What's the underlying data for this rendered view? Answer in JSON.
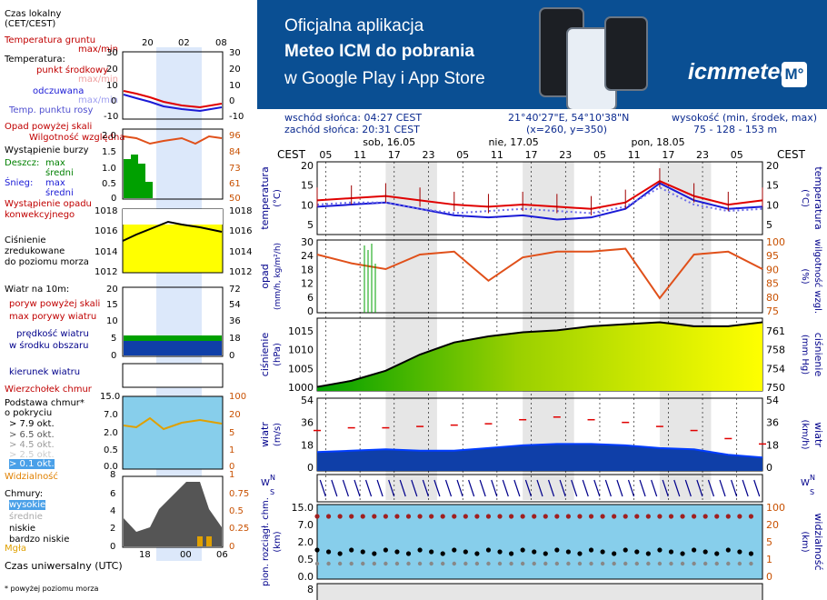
{
  "banner": {
    "line1": "Oficjalna aplikacja",
    "line2": "Meteo ICM do pobrania",
    "line3": "w Google Play i App Store",
    "logo": "icmmeteo",
    "logo_badge": "M°",
    "bg_color": "#0a4f93"
  },
  "info": {
    "sunrise": "wschód słońca: 04:27 CEST",
    "sunset": "zachód słońca: 20:31 CEST",
    "coords": "21°40'27\"E, 54°10'38\"N",
    "grid": "(x=260, y=350)",
    "elevation_label": "wysokość (min, środek, max)",
    "elevation_values": "75 - 128 - 153 m"
  },
  "legend": {
    "time_local": "Czas lokalny",
    "time_local2": "(CET/CEST)",
    "soil_temp": "Temperatura gruntu",
    "soil_temp_range": "max/min",
    "temperature": "Temperatura:",
    "mid_point": "punkt środkowy",
    "max_min": "max/min",
    "felt": "odczuwana",
    "max_min2": "max/min",
    "dew_point": "Temp. punktu rosy",
    "precip_over": "Opad powyżej skali",
    "humidity": "Wilgotność względna",
    "storm": "Wystąpienie burzy",
    "rain": "Deszcz:",
    "rain_max": "max",
    "rain_mean": "średni",
    "snow": "Śnieg:",
    "snow_max": "max",
    "snow_mean": "średni",
    "convective": "Wystąpienie opadu",
    "convective2": "konwekcyjnego",
    "pressure1": "Ciśnienie",
    "pressure2": "zredukowane",
    "pressure3": "do poziomu morza",
    "wind_10m": "Wiatr na 10m:",
    "gust_over": "poryw powyżej skali",
    "gust_max": "max porywy wiatru",
    "wind_speed": "prędkość wiatru",
    "wind_center": "w środku obszaru",
    "wind_dir": "kierunek wiatru",
    "cloud_top": "Wierzchołek chmur",
    "cloud_base1": "Podstawa chmur*",
    "cloud_base2": "o pokryciu",
    "okt79": "> 7.9 okt.",
    "okt65": "> 6.5 okt.",
    "okt45": "> 4.5 okt.",
    "okt25": "> 2.5 okt.",
    "okt01": "> 0.1 okt.",
    "visibility": "Widzialność",
    "clouds": "Chmury:",
    "cl_high": "wysokie",
    "cl_mid": "średnie",
    "cl_low": "niskie",
    "cl_vlow": "bardzo niskie",
    "fog": "Mgła",
    "utc": "Czas uniwersalny (UTC)",
    "footnote": "* powyżej poziomu morza"
  },
  "mini_ticks": {
    "top": [
      "20",
      "02",
      "08"
    ],
    "bottom": [
      "18",
      "00",
      "06"
    ],
    "temp_left": [
      "30",
      "20",
      "10",
      "0",
      "-10"
    ],
    "temp_right": [
      "30",
      "20",
      "10",
      "0",
      "-10"
    ],
    "prec_left": [
      "2.0",
      "1.5",
      "1.0",
      "0.5",
      "0"
    ],
    "prec_right": [
      "96",
      "84",
      "73",
      "61",
      "50"
    ],
    "pres_left": [
      "1018",
      "1016",
      "1014",
      "1012"
    ],
    "pres_right": [
      "1018",
      "1016",
      "1014",
      "1012"
    ],
    "wind_left": [
      "20",
      "15",
      "10",
      "5",
      "0"
    ],
    "wind_right": [
      "72",
      "54",
      "36",
      "18",
      "0"
    ],
    "cb_left": [
      "15.0",
      "7.0",
      "2.0",
      "0.5",
      "0.0"
    ],
    "cb_right": [
      "100",
      "20",
      "5",
      "1",
      "0"
    ],
    "cl_left": [
      "8",
      "6",
      "4",
      "2",
      "0"
    ],
    "cl_right": [
      "1",
      "0.75",
      "0.5",
      "0.25",
      "0"
    ]
  },
  "main_axes": {
    "cest": "CEST",
    "days": [
      "sob, 16.05",
      "nie, 17.05",
      "pon, 18.05"
    ],
    "hours": [
      "05",
      "11",
      "17",
      "23",
      "05",
      "11",
      "17",
      "23",
      "05",
      "11",
      "17",
      "23",
      "05"
    ],
    "temp_title": "temperatura",
    "temp_unit": "(°C)",
    "temp_ticks": [
      "20",
      "15",
      "10",
      "5"
    ],
    "prec_title": "opad",
    "prec_unit": "(mm/h, kg/m²/h)",
    "prec_ticks": [
      "30",
      "24",
      "18",
      "12",
      "6",
      "0"
    ],
    "hum_title": "wilgotność wzgl.",
    "hum_unit": "(%)",
    "hum_ticks": [
      "100",
      "95",
      "90",
      "85",
      "80",
      "75"
    ],
    "pres_title": "ciśnienie",
    "pres_unit": "(hPa)",
    "pres_ticks": [
      "1015",
      "1010",
      "1005",
      "1000"
    ],
    "pres_title_r": "ciśnienie",
    "pres_unit_r": "(mm Hg)",
    "pres_ticks_r": [
      "761",
      "758",
      "754",
      "750"
    ],
    "wind_title": "wiatr",
    "wind_unit": "(m/s)",
    "wind_ticks": [
      "54",
      "36",
      "18",
      "0"
    ],
    "wind_unit_r": "(km/h)",
    "cb_title": "pion. rozciągł. chm.",
    "cb_unit": "(km)",
    "cb_ticks": [
      "15.0",
      "7.0",
      "2.0",
      "0.5",
      "0.0"
    ],
    "vis_title": "widzialność",
    "vis_unit": "(km)",
    "vis_ticks": [
      "100",
      "20",
      "5",
      "1",
      "0"
    ],
    "cl_tick": "8",
    "wind_sym": "W",
    "wind_sym2": "N",
    "wind_sym3": "S",
    "wind_sym4": "E"
  },
  "colors": {
    "temp": "#e00000",
    "felt": "#1a1ad6",
    "dew": "#6f6fe8",
    "hum": "#e0501a",
    "pressure_line": "#000000",
    "pressure_fill_high": "#ffff00",
    "pressure_fill_low": "#00a000",
    "wind": "#003cff",
    "gust": "#e00000",
    "sky": "#87ceeb",
    "axis_blue": "#00008b",
    "axis_orange": "#c85000"
  },
  "chart_data": [
    {
      "type": "line",
      "title": "",
      "ylabel": "temperatura (°C)",
      "ylim": [
        3,
        20
      ],
      "x_hours_from_start": [
        0,
        6,
        12,
        18,
        24,
        30,
        36,
        42,
        48,
        54,
        60,
        66,
        72,
        78
      ],
      "series": [
        {
          "values": [
            11,
            11.5,
            12,
            11,
            10,
            9.5,
            10,
            9.5,
            9,
            10.5,
            15.5,
            12,
            10,
            11
          ]
        },
        {
          "values": [
            9.5,
            10,
            10.5,
            9,
            7.5,
            7,
            7.5,
            6.5,
            7,
            9,
            15,
            11,
            9,
            9.5
          ]
        },
        {
          "values": [
            10,
            10.5,
            10.5,
            9,
            8,
            8.5,
            9,
            8.5,
            8,
            9.5,
            14,
            10,
            8.5,
            9
          ]
        }
      ]
    },
    {
      "type": "line",
      "ylabel": "wilgotność wzgl. (%)",
      "ylim": [
        75,
        100
      ],
      "x_hours_from_start": [
        0,
        6,
        12,
        18,
        24,
        30,
        36,
        42,
        48,
        54,
        60,
        66,
        72,
        78
      ],
      "series": [
        {
          "values": [
            95,
            92,
            90,
            95,
            96,
            86,
            94,
            96,
            96,
            97,
            80,
            95,
            96,
            90
          ]
        }
      ]
    },
    {
      "type": "area",
      "ylabel": "ciśnienie (hPa)",
      "ylim": [
        999,
        1017
      ],
      "x_hours_from_start": [
        0,
        6,
        12,
        18,
        24,
        30,
        36,
        42,
        48,
        54,
        60,
        66,
        72,
        78
      ],
      "series": [
        {
          "values": [
            1000,
            1001.5,
            1004,
            1008,
            1011,
            1012.5,
            1013.5,
            1014,
            1015,
            1015.5,
            1016,
            1015,
            1015,
            1016
          ]
        }
      ]
    },
    {
      "type": "line",
      "ylabel": "wiatr (km/h)",
      "ylim": [
        0,
        54
      ],
      "x_hours_from_start": [
        0,
        6,
        12,
        18,
        24,
        30,
        36,
        42,
        48,
        54,
        60,
        66,
        72,
        78
      ],
      "series": [
        {
          "values": [
            14,
            15,
            16,
            15,
            15,
            17,
            19,
            20,
            20,
            19,
            17,
            16,
            12,
            10
          ]
        },
        {
          "values": [
            30,
            32,
            32,
            33,
            34,
            35,
            38,
            40,
            38,
            36,
            33,
            30,
            24,
            20
          ]
        }
      ]
    }
  ]
}
